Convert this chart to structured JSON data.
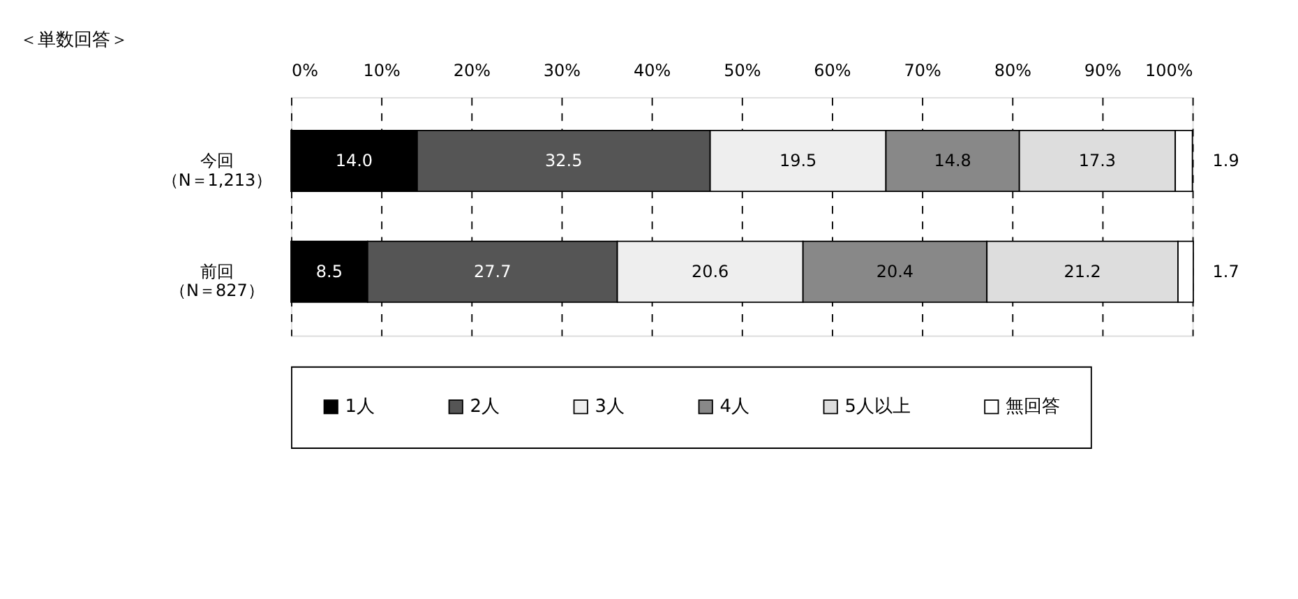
{
  "chart_data": {
    "type": "bar",
    "orientation": "horizontal",
    "stacked": true,
    "title": "＜単数回答＞",
    "categories": [
      "今回（N＝1,213）",
      "前回（N＝827）"
    ],
    "series": [
      {
        "name": "1人",
        "color": "#000000",
        "values": [
          14.0,
          8.5
        ],
        "value_labels": [
          "14.0",
          "8.5"
        ]
      },
      {
        "name": "2人",
        "color": "#555555",
        "values": [
          32.5,
          27.7
        ],
        "value_labels": [
          "32.5",
          "27.7"
        ]
      },
      {
        "name": "3人",
        "color": "#eeeeee",
        "values": [
          19.5,
          20.6
        ],
        "value_labels": [
          "19.5",
          "20.6"
        ]
      },
      {
        "name": "4人",
        "color": "#888888",
        "values": [
          14.8,
          20.4
        ],
        "value_labels": [
          "14.8",
          "20.4"
        ]
      },
      {
        "name": "5人以上",
        "color": "#dddddd",
        "values": [
          17.3,
          21.2
        ],
        "value_labels": [
          "17.3",
          "21.2"
        ]
      },
      {
        "name": "無回答",
        "color": "#ffffff",
        "values": [
          1.9,
          1.7
        ],
        "value_labels": [
          "1.9",
          "1.7"
        ]
      }
    ],
    "xlim": [
      0,
      100
    ],
    "xticks": [
      {
        "value": 0,
        "label": "0%"
      },
      {
        "value": 10,
        "label": "10%"
      },
      {
        "value": 20,
        "label": "20%"
      },
      {
        "value": 30,
        "label": "30%"
      },
      {
        "value": 40,
        "label": "40%"
      },
      {
        "value": 50,
        "label": "50%"
      },
      {
        "value": 60,
        "label": "60%"
      },
      {
        "value": 70,
        "label": "70%"
      },
      {
        "value": 80,
        "label": "80%"
      },
      {
        "value": 90,
        "label": "90%"
      },
      {
        "value": 100,
        "label": "100%"
      }
    ],
    "grid": "x",
    "legend": "bottom"
  }
}
